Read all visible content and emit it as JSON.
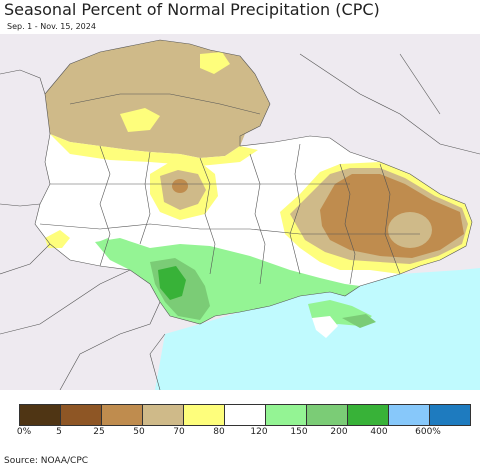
{
  "title": "Seasonal Percent of Normal Precipitation (CPC)",
  "subtitle": "Sep. 1 - Nov. 15, 2024",
  "source": "Source: NOAA/CPC",
  "colors": {
    "background": "#eeeaf0",
    "sea": "#c0fafe",
    "white": "#ffffff",
    "yellow": "#fefe7c",
    "tan": "#cfba89",
    "orange_brown": "#bf8c4e",
    "light_green": "#94f494",
    "mid_green": "#7bcc76",
    "green": "#38b238",
    "border": "#555555"
  },
  "legend": {
    "colors": [
      "#4f3514",
      "#8e5625",
      "#bf8c4e",
      "#cfba89",
      "#fefe7c",
      "#ffffff",
      "#94f494",
      "#7bcc76",
      "#38b238",
      "#87c8fa",
      "#1e7bbf"
    ],
    "labels": [
      "0%",
      "5",
      "25",
      "50",
      "70",
      "80",
      "120",
      "150",
      "200",
      "400",
      "600%"
    ]
  }
}
